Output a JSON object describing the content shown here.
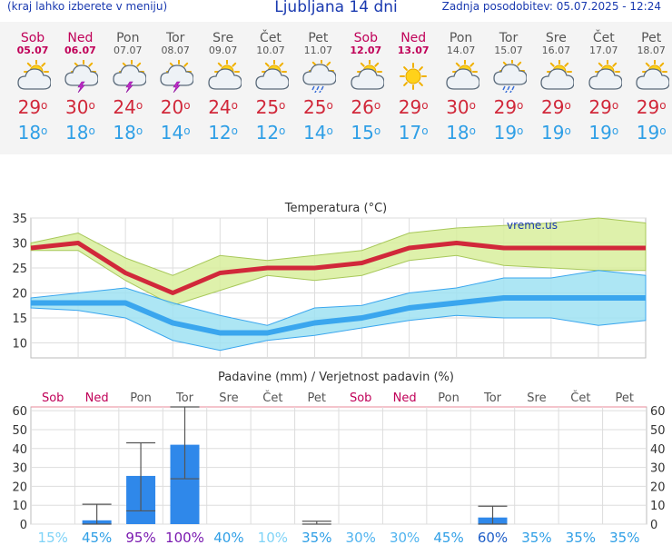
{
  "header": {
    "menu_hint": "(kraj lahko izberete v meniju)",
    "title": "Ljubljana 14 dni",
    "updated": "Zadnja posodobitev: 05.07.2025 - 12:24"
  },
  "days": [
    {
      "name": "Sob",
      "date": "05.07",
      "weekend": true,
      "icon": "partly-cloudy-icon",
      "tmax": "29",
      "tmin": "18"
    },
    {
      "name": "Ned",
      "date": "06.07",
      "weekend": true,
      "icon": "thunderstorm-icon",
      "tmax": "30",
      "tmin": "18"
    },
    {
      "name": "Pon",
      "date": "07.07",
      "weekend": false,
      "icon": "thunderstorm-icon",
      "tmax": "24",
      "tmin": "18"
    },
    {
      "name": "Tor",
      "date": "08.07",
      "weekend": false,
      "icon": "thunderstorm-icon",
      "tmax": "20",
      "tmin": "14"
    },
    {
      "name": "Sre",
      "date": "09.07",
      "weekend": false,
      "icon": "partly-cloudy-icon",
      "tmax": "24",
      "tmin": "12"
    },
    {
      "name": "Čet",
      "date": "10.07",
      "weekend": false,
      "icon": "partly-cloudy-icon",
      "tmax": "25",
      "tmin": "12"
    },
    {
      "name": "Pet",
      "date": "11.07",
      "weekend": false,
      "icon": "rain-cloud-icon",
      "tmax": "25",
      "tmin": "14"
    },
    {
      "name": "Sob",
      "date": "12.07",
      "weekend": true,
      "icon": "partly-cloudy-icon",
      "tmax": "26",
      "tmin": "15"
    },
    {
      "name": "Ned",
      "date": "13.07",
      "weekend": true,
      "icon": "sunny-icon",
      "tmax": "29",
      "tmin": "17"
    },
    {
      "name": "Pon",
      "date": "14.07",
      "weekend": false,
      "icon": "partly-cloudy-icon",
      "tmax": "30",
      "tmin": "18"
    },
    {
      "name": "Tor",
      "date": "15.07",
      "weekend": false,
      "icon": "rain-cloud-icon",
      "tmax": "29",
      "tmin": "19"
    },
    {
      "name": "Sre",
      "date": "16.07",
      "weekend": false,
      "icon": "partly-cloudy-icon",
      "tmax": "29",
      "tmin": "19"
    },
    {
      "name": "Čet",
      "date": "17.07",
      "weekend": false,
      "icon": "partly-cloudy-icon",
      "tmax": "29",
      "tmin": "19"
    },
    {
      "name": "Pet",
      "date": "18.07",
      "weekend": false,
      "icon": "partly-cloudy-icon",
      "tmax": "29",
      "tmin": "19"
    }
  ],
  "colors": {
    "max_line": "#d1283a",
    "max_band": "#d8ef9c",
    "min_line": "#3aa6ee",
    "min_band": "#9fe2f2",
    "bar": "#2f88ea",
    "weekend": "#c00058",
    "weekday": "#555555"
  },
  "temp_chart": {
    "title": "Temperatura (°C)",
    "watermark": "vreme.us",
    "ylim": [
      7,
      35
    ],
    "yticks": [
      "35",
      "30",
      "25",
      "20",
      "15",
      "10"
    ],
    "ytick_values": [
      35,
      30,
      25,
      20,
      15,
      10
    ],
    "max": [
      29,
      30,
      24,
      20,
      24,
      25,
      25,
      26,
      29,
      30,
      29,
      29,
      29,
      29
    ],
    "max_band_low": [
      28.5,
      28.5,
      22.5,
      17.5,
      20.5,
      23.5,
      22.5,
      23.5,
      26.5,
      27.5,
      25.5,
      25,
      24.5,
      24.5
    ],
    "max_band_high": [
      30,
      32,
      27,
      23.5,
      27.5,
      26.5,
      27.5,
      28.5,
      32,
      33,
      33.5,
      34,
      35,
      34
    ],
    "min": [
      18,
      18,
      18,
      14,
      12,
      12,
      14,
      15,
      17,
      18,
      19,
      19,
      19,
      19
    ],
    "min_band_low": [
      17,
      16.5,
      15,
      10.5,
      8.5,
      10.5,
      11.5,
      13,
      14.5,
      15.5,
      15,
      15,
      13.5,
      14.5
    ],
    "min_band_high": [
      19,
      20,
      21,
      18,
      15.5,
      13.5,
      17,
      17.5,
      20,
      21,
      23,
      23,
      24.5,
      23.5
    ]
  },
  "precip_chart": {
    "title": "Padavine (mm) / Verjetnost padavin (%)",
    "day_labels": [
      "Sob",
      "Ned",
      "Pon",
      "Tor",
      "Sre",
      "Čet",
      "Pet",
      "Sob",
      "Ned",
      "Pon",
      "Tor",
      "Sre",
      "Čet",
      "Pet"
    ],
    "ylim": [
      0,
      62
    ],
    "yticks": [
      "60",
      "50",
      "40",
      "30",
      "20",
      "10",
      "0"
    ],
    "ytick_values": [
      60,
      50,
      40,
      30,
      20,
      10,
      0
    ],
    "amount_mm": [
      0,
      2,
      25.5,
      42,
      0,
      0,
      0,
      0,
      0,
      0,
      3.5,
      0,
      0,
      0
    ],
    "whisker_low": [
      null,
      0,
      7,
      24,
      null,
      null,
      0,
      null,
      null,
      null,
      0,
      null,
      null,
      null
    ],
    "whisker_high": [
      null,
      10.5,
      43,
      62,
      null,
      null,
      1.5,
      null,
      null,
      null,
      9.5,
      null,
      null,
      null
    ],
    "probability": [
      "15%",
      "45%",
      "95%",
      "100%",
      "40%",
      "10%",
      "35%",
      "30%",
      "30%",
      "45%",
      "60%",
      "35%",
      "35%",
      "35%"
    ],
    "prob_colors": [
      "#7fd3f7",
      "#2f9fe6",
      "#7a1ab0",
      "#7a1ab0",
      "#2f9fe6",
      "#7fd3f7",
      "#2f9fe6",
      "#4fb3ef",
      "#4fb3ef",
      "#2f9fe6",
      "#1f5fc8",
      "#2f9fe6",
      "#2f9fe6",
      "#2f9fe6"
    ]
  }
}
